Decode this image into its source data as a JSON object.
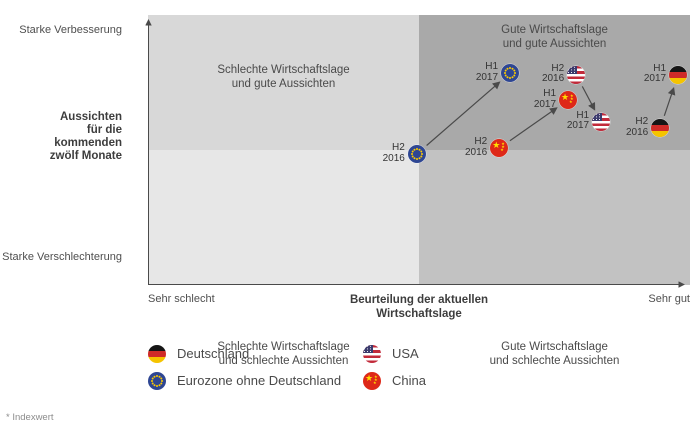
{
  "chart_data": {
    "type": "scatter",
    "title": "",
    "axis": {
      "y_top": "Starke Verbesserung",
      "y_title": "Aussichten\nfür die\nkommenden\nzwölf Monate",
      "y_bottom": "Starke Verschlechterung",
      "x_left": "Sehr schlecht",
      "x_title": "Beurteilung der aktuellen\nWirtschaftslage",
      "x_right": "Sehr gut"
    },
    "quadrants": {
      "top_left": {
        "label": "Schlechte Wirtschaftslage\nund gute Aussichten",
        "color": "#d8d8d8"
      },
      "top_right": {
        "label": "Gute Wirtschaftslage\nund gute Aussichten",
        "color": "#a9a9a9"
      },
      "bottom_left": {
        "label": "Schlechte Wirtschaftslage\nund schlechte Aussichten",
        "color": "#e7e7e7"
      },
      "bottom_right": {
        "label": "Gute Wirtschaftslage\nund schlechte Aussichten",
        "color": "#c2c2c2"
      }
    },
    "series": [
      {
        "name": "Eurozone ohne Deutschland",
        "flag": "eu",
        "points": [
          {
            "label": "H2 2016",
            "x": 49.6,
            "y": 51.5
          },
          {
            "label": "H1 2017",
            "x": 66.8,
            "y": 21.5
          }
        ]
      },
      {
        "name": "China",
        "flag": "cn",
        "points": [
          {
            "label": "H2 2016",
            "x": 64.8,
            "y": 49.3
          },
          {
            "label": "H1 2017",
            "x": 77.5,
            "y": 31.5
          }
        ]
      },
      {
        "name": "USA",
        "flag": "us",
        "points": [
          {
            "label": "H2 2016",
            "x": 79.0,
            "y": 22.2
          },
          {
            "label": "H1 2017",
            "x": 83.6,
            "y": 39.6
          }
        ]
      },
      {
        "name": "Deutschland",
        "flag": "de",
        "points": [
          {
            "label": "H2 2016",
            "x": 94.5,
            "y": 41.9
          },
          {
            "label": "H1 2017",
            "x": 97.8,
            "y": 22.2
          }
        ]
      }
    ],
    "arrow_color": "#4a4a4a",
    "legend_position": "bottom"
  },
  "legend": {
    "items": [
      {
        "flag": "de",
        "label": "Deutschland"
      },
      {
        "flag": "eu",
        "label": "Eurozone ohne Deutschland"
      },
      {
        "flag": "us",
        "label": "USA"
      },
      {
        "flag": "cn",
        "label": "China"
      }
    ]
  },
  "footnote": "* Indexwert"
}
